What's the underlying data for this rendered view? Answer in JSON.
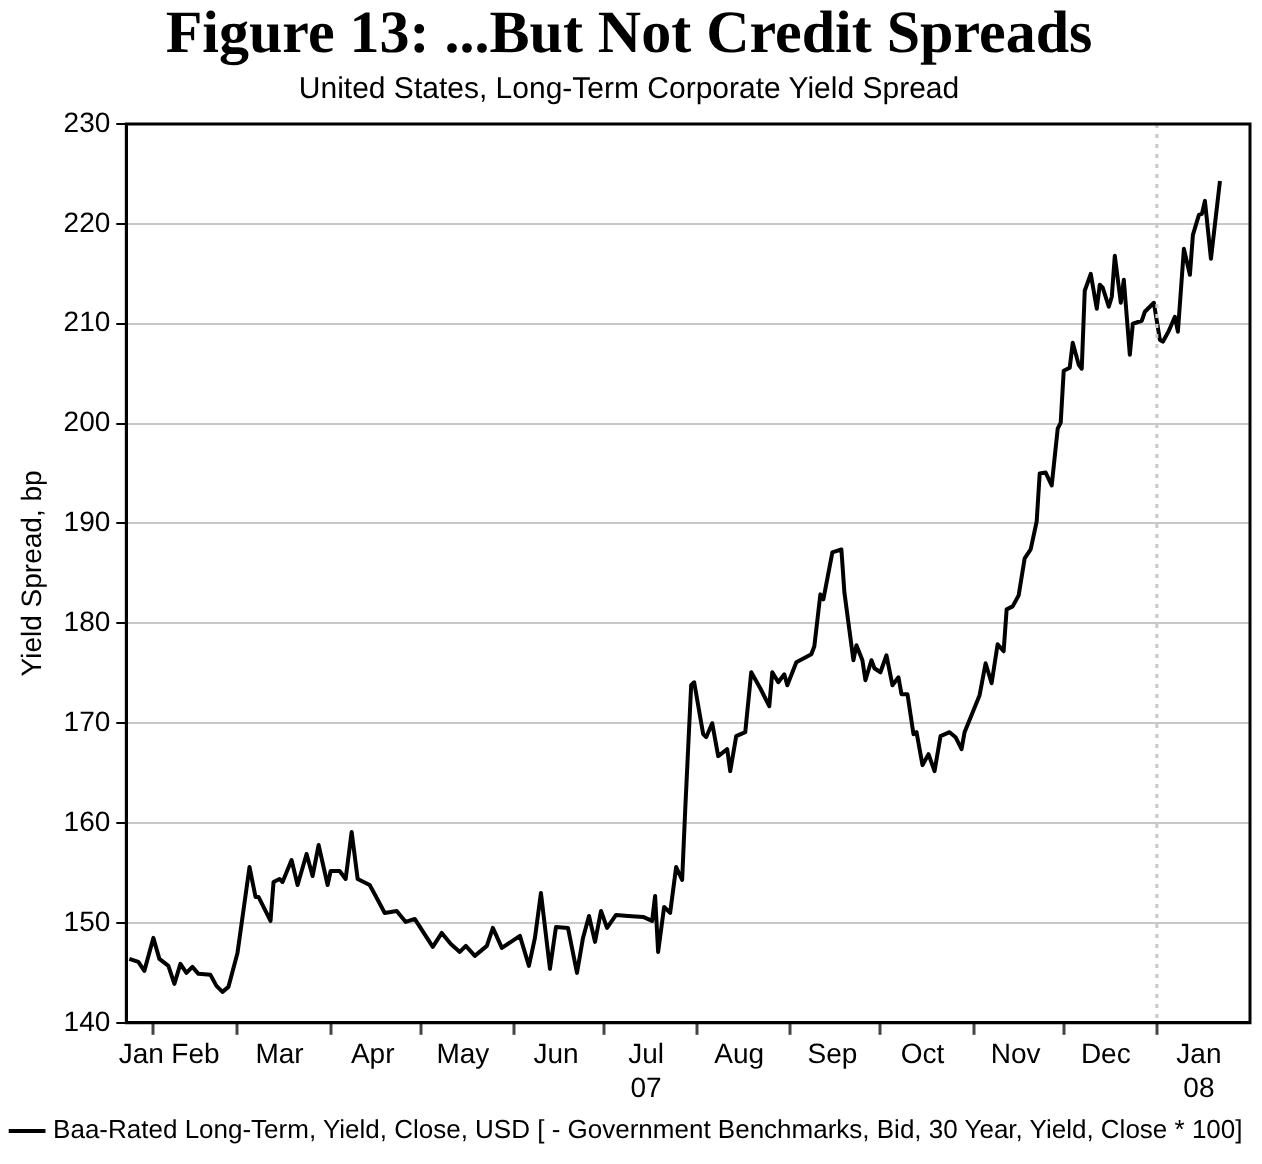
{
  "chart_data": {
    "type": "line",
    "title": "Figure 13: ...But Not Credit Spreads",
    "subtitle": "United States, Long-Term Corporate Yield Spread",
    "ylabel": "Yield Spread, bp",
    "x": [
      "2007-01-24",
      "2007-01-27",
      "2007-01-29",
      "2007-02-01",
      "2007-02-03",
      "2007-02-06",
      "2007-02-08",
      "2007-02-10",
      "2007-02-12",
      "2007-02-14",
      "2007-02-16",
      "2007-02-20",
      "2007-02-22",
      "2007-02-24",
      "2007-02-26",
      "2007-03-01",
      "2007-03-03",
      "2007-03-05",
      "2007-03-07",
      "2007-03-08",
      "2007-03-12",
      "2007-03-13",
      "2007-03-15",
      "2007-03-16",
      "2007-03-19",
      "2007-03-21",
      "2007-03-24",
      "2007-03-26",
      "2007-03-28",
      "2007-03-31",
      "2007-04-01",
      "2007-04-04",
      "2007-04-06",
      "2007-04-08",
      "2007-04-10",
      "2007-04-14",
      "2007-04-16",
      "2007-04-19",
      "2007-04-23",
      "2007-04-26",
      "2007-04-29",
      "2007-05-02",
      "2007-05-05",
      "2007-05-08",
      "2007-05-11",
      "2007-05-14",
      "2007-05-16",
      "2007-05-19",
      "2007-05-23",
      "2007-05-25",
      "2007-05-28",
      "2007-06-03",
      "2007-06-06",
      "2007-06-08",
      "2007-06-10",
      "2007-06-13",
      "2007-06-15",
      "2007-06-19",
      "2007-06-22",
      "2007-06-24",
      "2007-06-26",
      "2007-06-28",
      "2007-06-30",
      "2007-07-02",
      "2007-07-05",
      "2007-07-09",
      "2007-07-14",
      "2007-07-17",
      "2007-07-18",
      "2007-07-19",
      "2007-07-21",
      "2007-07-23",
      "2007-07-25",
      "2007-07-27",
      "2007-07-28",
      "2007-07-30",
      "2007-07-31",
      "2007-08-03",
      "2007-08-04",
      "2007-08-06",
      "2007-08-08",
      "2007-08-11",
      "2007-08-12",
      "2007-08-14",
      "2007-08-17",
      "2007-08-19",
      "2007-08-22",
      "2007-08-25",
      "2007-08-26",
      "2007-08-28",
      "2007-08-30",
      "2007-08-31",
      "2007-09-03",
      "2007-09-08",
      "2007-09-09",
      "2007-09-11",
      "2007-09-12",
      "2007-09-15",
      "2007-09-18",
      "2007-09-19",
      "2007-09-22",
      "2007-09-23",
      "2007-09-25",
      "2007-09-26",
      "2007-09-28",
      "2007-09-29",
      "2007-10-01",
      "2007-10-03",
      "2007-10-05",
      "2007-10-07",
      "2007-10-08",
      "2007-10-10",
      "2007-10-12",
      "2007-10-13",
      "2007-10-15",
      "2007-10-17",
      "2007-10-19",
      "2007-10-21",
      "2007-10-24",
      "2007-10-26",
      "2007-10-28",
      "2007-10-29",
      "2007-11-03",
      "2007-11-05",
      "2007-11-07",
      "2007-11-09",
      "2007-11-11",
      "2007-11-12",
      "2007-11-14",
      "2007-11-16",
      "2007-11-18",
      "2007-11-20",
      "2007-11-22",
      "2007-11-23",
      "2007-11-25",
      "2007-11-27",
      "2007-11-29",
      "2007-11-30",
      "2007-12-01",
      "2007-12-03",
      "2007-12-04",
      "2007-12-06",
      "2007-12-07",
      "2007-12-08",
      "2007-12-10",
      "2007-12-12",
      "2007-12-13",
      "2007-12-14",
      "2007-12-16",
      "2007-12-17",
      "2007-12-18",
      "2007-12-20",
      "2007-12-21",
      "2007-12-23",
      "2007-12-24",
      "2007-12-27",
      "2007-12-28",
      "2007-12-31",
      "2008-01-02",
      "2008-01-03",
      "2008-01-05",
      "2008-01-07",
      "2008-01-08",
      "2008-01-10",
      "2008-01-12",
      "2008-01-13",
      "2008-01-15",
      "2008-01-16",
      "2008-01-17",
      "2008-01-19",
      "2008-01-22"
    ],
    "series": [
      {
        "name": "Baa-Rated Long-Term, Yield, Close, USD [ - Government Benchmarks, Bid, 30 Year, Yield, Close * 100]",
        "color": "#000000",
        "values": [
          146.4,
          146.1,
          145.2,
          148.5,
          146.4,
          145.7,
          143.9,
          145.9,
          145.0,
          145.6,
          144.9,
          144.8,
          143.7,
          143.1,
          143.6,
          147.0,
          151.3,
          155.6,
          152.6,
          152.6,
          150.2,
          154.1,
          154.4,
          154.1,
          156.3,
          153.8,
          156.9,
          154.7,
          157.8,
          153.8,
          155.2,
          155.2,
          154.4,
          159.1,
          154.4,
          153.8,
          152.7,
          151.0,
          151.2,
          150.1,
          150.4,
          149.0,
          147.6,
          149.0,
          147.9,
          147.1,
          147.7,
          146.7,
          147.7,
          149.5,
          147.5,
          148.7,
          145.7,
          148.5,
          153.0,
          145.4,
          149.6,
          149.5,
          145.0,
          148.5,
          150.7,
          148.1,
          151.2,
          149.5,
          150.8,
          150.7,
          150.6,
          150.2,
          152.7,
          147.1,
          151.6,
          151.0,
          155.6,
          154.3,
          161.2,
          173.8,
          174.1,
          168.9,
          168.6,
          170.0,
          166.7,
          167.4,
          165.2,
          168.7,
          169.1,
          175.1,
          173.5,
          171.7,
          175.1,
          174.1,
          174.9,
          173.8,
          176.1,
          176.9,
          177.7,
          182.9,
          182.4,
          187.1,
          187.4,
          183.1,
          176.3,
          177.8,
          176.3,
          174.3,
          176.3,
          175.5,
          175.1,
          176.8,
          173.8,
          174.6,
          172.9,
          172.9,
          168.9,
          169.1,
          165.8,
          166.9,
          165.2,
          168.7,
          169.1,
          168.6,
          167.4,
          169.1,
          172.8,
          176.0,
          174.0,
          177.9,
          177.2,
          181.4,
          181.7,
          182.8,
          186.5,
          187.4,
          190.2,
          195.0,
          195.1,
          193.8,
          199.5,
          200.1,
          205.3,
          205.6,
          208.1,
          205.9,
          205.5,
          213.3,
          215.0,
          211.5,
          213.9,
          213.6,
          211.7,
          212.7,
          216.8,
          212.1,
          214.4,
          206.9,
          210.0,
          210.3,
          211.2,
          212.1,
          208.4,
          208.2,
          209.3,
          210.7,
          209.2,
          217.5,
          214.9,
          218.9,
          220.9,
          221.0,
          222.3,
          216.5,
          224.3
        ]
      }
    ],
    "xlim": [
      "2007-01-23",
      "2008-02-01"
    ],
    "xticks": [
      {
        "value": "2007-01-28",
        "label": "Jan"
      },
      {
        "value": "2007-02-01",
        "label": null
      },
      {
        "value": "2007-02-15",
        "label": "Feb"
      },
      {
        "value": "2007-03-01",
        "label": null
      },
      {
        "value": "2007-03-15",
        "label": "Mar"
      },
      {
        "value": "2007-04-01",
        "label": null
      },
      {
        "value": "2007-04-15",
        "label": "Apr"
      },
      {
        "value": "2007-05-01",
        "label": null
      },
      {
        "value": "2007-05-15",
        "label": "May"
      },
      {
        "value": "2007-06-01",
        "label": null
      },
      {
        "value": "2007-06-15",
        "label": "Jun"
      },
      {
        "value": "2007-07-01",
        "label": null
      },
      {
        "value": "2007-07-15",
        "label": "Jul\n07"
      },
      {
        "value": "2007-08-01",
        "label": null
      },
      {
        "value": "2007-08-15",
        "label": "Aug"
      },
      {
        "value": "2007-09-01",
        "label": null
      },
      {
        "value": "2007-09-15",
        "label": "Sep"
      },
      {
        "value": "2007-10-01",
        "label": null
      },
      {
        "value": "2007-10-15",
        "label": "Oct"
      },
      {
        "value": "2007-11-01",
        "label": null
      },
      {
        "value": "2007-11-15",
        "label": "Nov"
      },
      {
        "value": "2007-12-01",
        "label": null
      },
      {
        "value": "2007-12-15",
        "label": "Dec"
      },
      {
        "value": "2008-01-01",
        "label": null
      },
      {
        "value": "2008-01-15",
        "label": "Jan\n08"
      }
    ],
    "ylim": [
      140,
      230
    ],
    "yticks": [
      140,
      150,
      160,
      170,
      180,
      190,
      200,
      210,
      220,
      230
    ],
    "ref_lines": [
      {
        "axis": "x",
        "value": "2008-01-01",
        "color": "#c8c8c8",
        "line_style": "dotted"
      }
    ],
    "grid": "y",
    "legend": "bottom",
    "marker": "none",
    "line_style": "solid"
  }
}
